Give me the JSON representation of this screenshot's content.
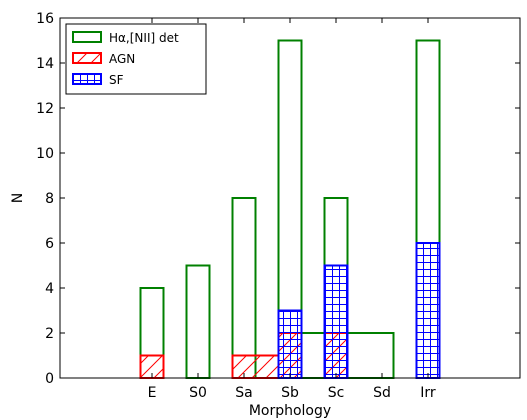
{
  "chart_data": {
    "type": "bar",
    "xlabel": "Morphology",
    "ylabel": "N",
    "categories": [
      "E",
      "S0",
      "Sa",
      "Sb",
      "Sc",
      "Sd",
      "Irr"
    ],
    "xlim": [
      -2,
      8
    ],
    "ylim": [
      0,
      16
    ],
    "yticks": [
      "0",
      "2",
      "4",
      "6",
      "8",
      "10",
      "12",
      "14",
      "16"
    ],
    "legend_position": "top-left",
    "series": [
      {
        "name": "Hα,[NII] det",
        "color": "#008000",
        "fill": "none",
        "bins": [
          {
            "x0": -0.25,
            "x1": 0.25,
            "value": 4
          },
          {
            "x0": 0.75,
            "x1": 1.25,
            "value": 5
          },
          {
            "x0": 1.75,
            "x1": 2.25,
            "value": 8
          },
          {
            "x0": 2.75,
            "x1": 3.25,
            "value": 15
          },
          {
            "x0": 3.25,
            "x1": 3.75,
            "value": 2
          },
          {
            "x0": 3.75,
            "x1": 4.25,
            "value": 8
          },
          {
            "x0": 4.25,
            "x1": 5.25,
            "value": 2
          },
          {
            "x0": 5.75,
            "x1": 6.25,
            "value": 15
          }
        ]
      },
      {
        "name": "AGN",
        "color": "#ff0000",
        "fill": "hatch-diagonal",
        "bins": [
          {
            "x0": -0.25,
            "x1": 0.25,
            "value": 1
          },
          {
            "x0": 1.75,
            "x1": 2.75,
            "value": 1
          },
          {
            "x0": 2.75,
            "x1": 3.25,
            "value": 2
          },
          {
            "x0": 3.75,
            "x1": 4.25,
            "value": 2
          }
        ]
      },
      {
        "name": "SF",
        "color": "#0000ff",
        "fill": "hatch-grid",
        "bins": [
          {
            "x0": 2.75,
            "x1": 3.25,
            "value": 3
          },
          {
            "x0": 3.75,
            "x1": 4.25,
            "value": 5
          },
          {
            "x0": 5.75,
            "x1": 6.25,
            "value": 6
          }
        ]
      }
    ]
  }
}
